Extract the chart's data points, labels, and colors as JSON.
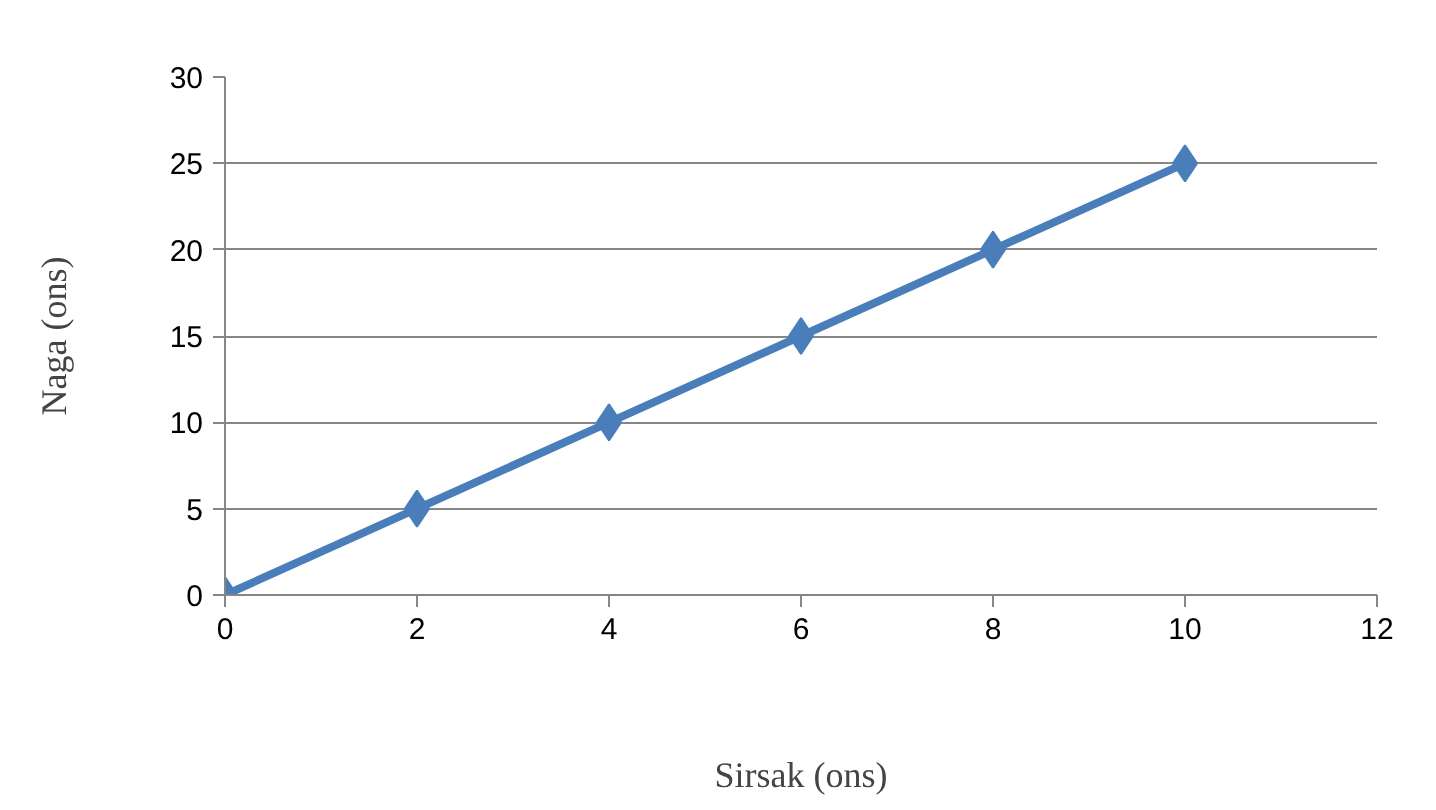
{
  "chart_data": {
    "type": "line",
    "xlabel": "Sirsak (ons)",
    "ylabel": "Naga (ons)",
    "x": [
      0,
      2,
      4,
      6,
      8,
      10
    ],
    "series": [
      {
        "color": "#4a7ebb",
        "values": [
          0,
          5,
          10,
          15,
          20,
          25
        ]
      }
    ],
    "xlim": [
      0,
      12
    ],
    "xticks": [
      0,
      2,
      4,
      6,
      8,
      10,
      12
    ],
    "ylim": [
      0,
      30
    ],
    "yticks": [
      0,
      5,
      10,
      15,
      20,
      25,
      30
    ],
    "grid": "y",
    "marker": "diamond",
    "line_style": "solid"
  }
}
